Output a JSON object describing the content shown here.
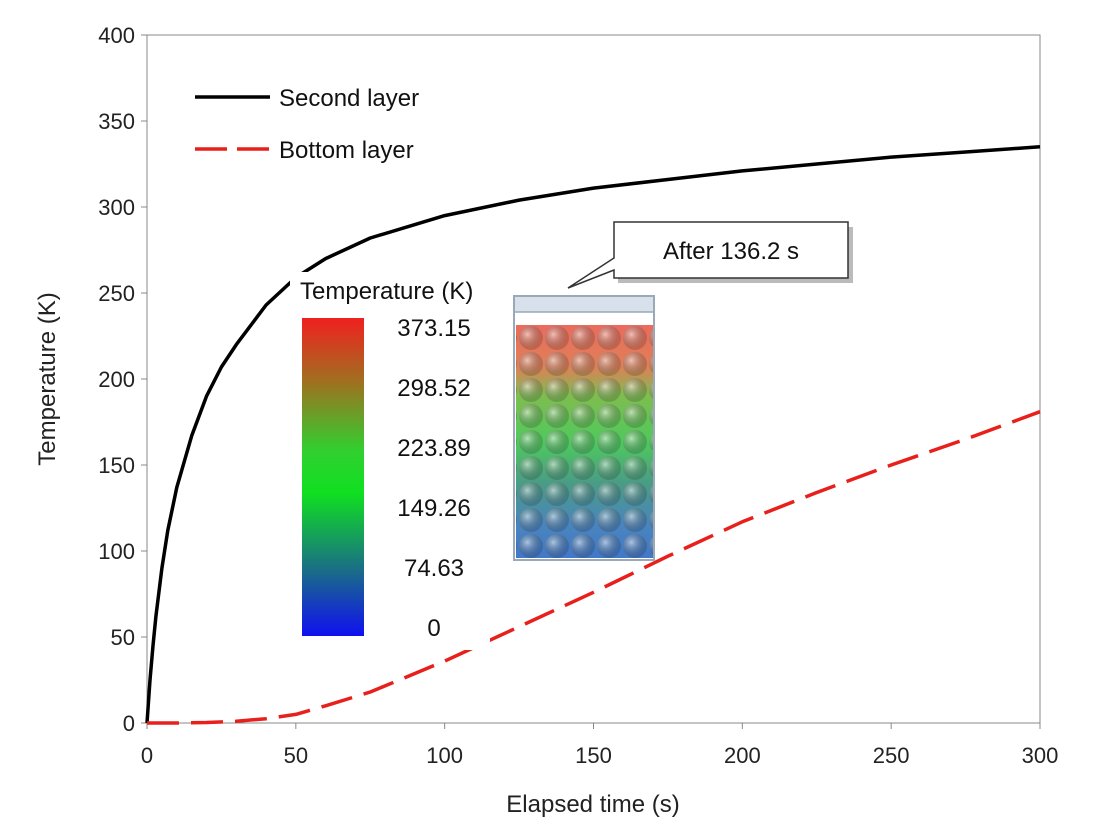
{
  "chart_data": {
    "type": "line",
    "title": "",
    "xlabel": "Elapsed time (s)",
    "ylabel": "Temperature (K)",
    "xlim": [
      0,
      300
    ],
    "ylim": [
      0,
      400
    ],
    "xticks": [
      0,
      50,
      100,
      150,
      200,
      250,
      300
    ],
    "yticks": [
      0,
      50,
      100,
      150,
      200,
      250,
      300,
      350,
      400
    ],
    "grid": false,
    "legend_position": "top-left",
    "series": [
      {
        "name": "Second layer",
        "color": "#000000",
        "style": "solid",
        "x": [
          0,
          1,
          2,
          3,
          5,
          7,
          10,
          15,
          20,
          25,
          30,
          40,
          50,
          60,
          75,
          100,
          125,
          150,
          175,
          200,
          225,
          250,
          275,
          300
        ],
        "y": [
          0,
          25,
          45,
          62,
          90,
          112,
          137,
          167,
          190,
          207,
          220,
          243,
          259,
          270,
          282,
          295,
          304,
          311,
          316,
          321,
          325,
          329,
          332,
          335
        ]
      },
      {
        "name": "Bottom layer",
        "color": "#e8201c",
        "style": "dashed",
        "x": [
          0,
          10,
          20,
          30,
          40,
          50,
          60,
          75,
          100,
          125,
          150,
          175,
          200,
          225,
          250,
          275,
          300
        ],
        "y": [
          0,
          0,
          0.3,
          1,
          2.5,
          5,
          10,
          18,
          36,
          56,
          76,
          97,
          117,
          134,
          150,
          165,
          181
        ]
      }
    ],
    "inset": {
      "colorbar_title": "Temperature (K)",
      "colorbar_ticks": [
        "373.15",
        "298.52",
        "223.89",
        "149.26",
        "74.63",
        "0"
      ],
      "callout": "After 136.2 s"
    }
  }
}
